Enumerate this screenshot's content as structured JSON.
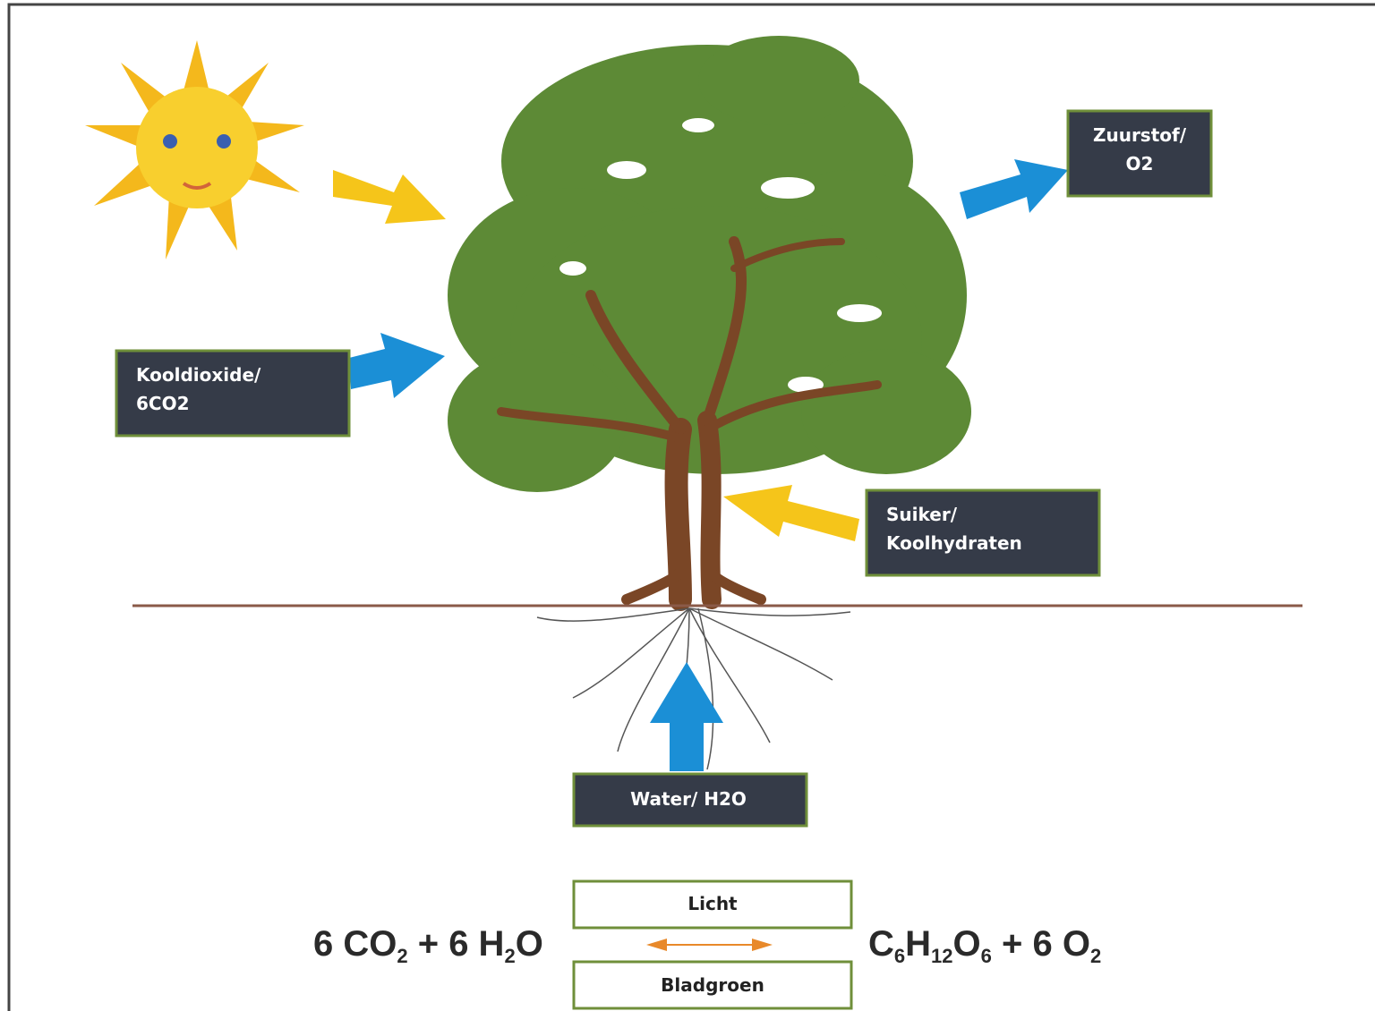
{
  "labels": {
    "oxygen": [
      "Zuurstof/",
      "O2"
    ],
    "carbon_dioxide": [
      "Kooldioxide/",
      "6CO2"
    ],
    "sugar": [
      "Suiker/",
      "Koolhydraten"
    ],
    "water": "Water/ H2O",
    "light": "Licht",
    "chlorophyll": "Bladgroen"
  },
  "equation": {
    "left": [
      "6 CO",
      "2",
      " + 6 H",
      "2",
      "O"
    ],
    "right": [
      "C",
      "6",
      "H",
      "12",
      "O",
      "6",
      " + 6 O",
      "2"
    ]
  }
}
